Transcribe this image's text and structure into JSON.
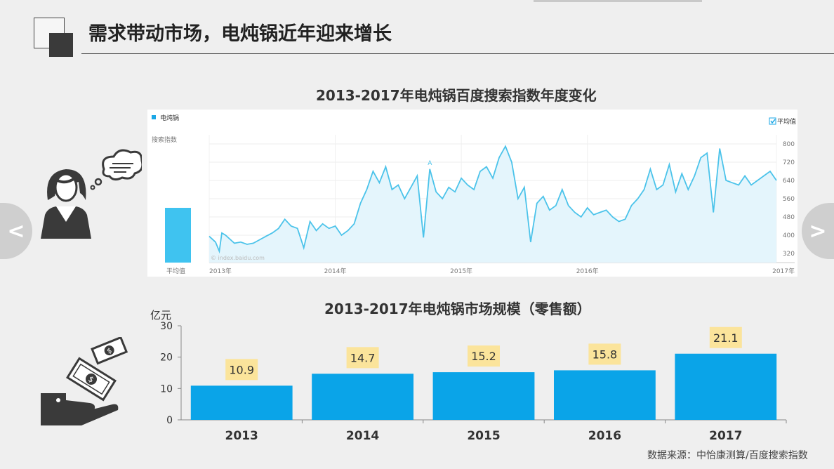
{
  "page": {
    "title": "需求带动市场，电炖锅近年迎来增长",
    "source": "数据来源：中怡康测算/百度搜索指数"
  },
  "nav": {
    "prev_glyph": "<",
    "next_glyph": ">"
  },
  "colors": {
    "accent": "#1aa7e6",
    "light_blue": "#3fc3f0",
    "label_bg": "#fbe49b",
    "dark": "#3a3a3a"
  },
  "icons": {
    "person": "person-thinking-icon",
    "money": "money-hand-icon"
  },
  "chart_data": [
    {
      "type": "line",
      "title": "2013-2017年电炖锅百度搜索指数年度变化",
      "legend_label": "电炖锅",
      "left_label": "搜索指数",
      "average_label": "平均值",
      "average_checkbox_label": "平均值",
      "watermark": "© index.baidu.com",
      "marker_label": "A",
      "yticks": [
        320,
        400,
        480,
        560,
        640,
        720,
        800
      ],
      "ylim": [
        280,
        840
      ],
      "x_ticks": [
        "2013年",
        "2014年",
        "2015年",
        "2016年",
        "2017年"
      ],
      "x_tick_positions": [
        0,
        1,
        2,
        3,
        4.5
      ],
      "x_range": [
        0,
        4.5
      ],
      "average_value": 540,
      "x": [
        0,
        0.05,
        0.08,
        0.1,
        0.13,
        0.17,
        0.2,
        0.25,
        0.3,
        0.35,
        0.4,
        0.45,
        0.5,
        0.55,
        0.6,
        0.65,
        0.7,
        0.75,
        0.8,
        0.85,
        0.9,
        0.95,
        1.0,
        1.05,
        1.1,
        1.15,
        1.2,
        1.25,
        1.3,
        1.35,
        1.4,
        1.45,
        1.5,
        1.55,
        1.6,
        1.65,
        1.7,
        1.75,
        1.8,
        1.85,
        1.9,
        1.95,
        2.0,
        2.05,
        2.1,
        2.15,
        2.2,
        2.25,
        2.3,
        2.35,
        2.4,
        2.45,
        2.5,
        2.55,
        2.6,
        2.65,
        2.7,
        2.75,
        2.8,
        2.85,
        2.9,
        2.95,
        3.0,
        3.05,
        3.1,
        3.15,
        3.2,
        3.25,
        3.3,
        3.35,
        3.4,
        3.45,
        3.5,
        3.55,
        3.6,
        3.65,
        3.7,
        3.75,
        3.8,
        3.85,
        3.9,
        3.95,
        4.0,
        4.05,
        4.1,
        4.15,
        4.2,
        4.25,
        4.3,
        4.35,
        4.4,
        4.45,
        4.5
      ],
      "values": [
        395,
        370,
        330,
        410,
        400,
        380,
        365,
        370,
        360,
        365,
        380,
        395,
        410,
        430,
        470,
        440,
        430,
        345,
        460,
        420,
        450,
        430,
        440,
        400,
        420,
        450,
        540,
        600,
        680,
        630,
        700,
        600,
        620,
        560,
        610,
        660,
        390,
        690,
        590,
        560,
        610,
        590,
        650,
        620,
        600,
        680,
        700,
        650,
        740,
        790,
        720,
        560,
        610,
        370,
        540,
        570,
        510,
        530,
        600,
        530,
        500,
        480,
        520,
        490,
        500,
        510,
        480,
        460,
        470,
        530,
        560,
        600,
        690,
        600,
        620,
        710,
        590,
        670,
        600,
        660,
        740,
        760,
        500,
        780,
        640,
        630,
        620,
        660,
        620,
        640,
        660,
        680,
        640
      ]
    },
    {
      "type": "bar",
      "title": "2013-2017年电炖锅市场规模（零售额）",
      "unit_label": "亿元",
      "categories": [
        "2013",
        "2014",
        "2015",
        "2016",
        "2017"
      ],
      "values": [
        10.9,
        14.7,
        15.2,
        15.8,
        21.1
      ],
      "data_labels": [
        "10.9",
        "14.7",
        "15.2",
        "15.8",
        "21.1"
      ],
      "yticks": [
        "0",
        "10",
        "20",
        "30"
      ],
      "ylim": [
        0,
        30
      ]
    }
  ]
}
